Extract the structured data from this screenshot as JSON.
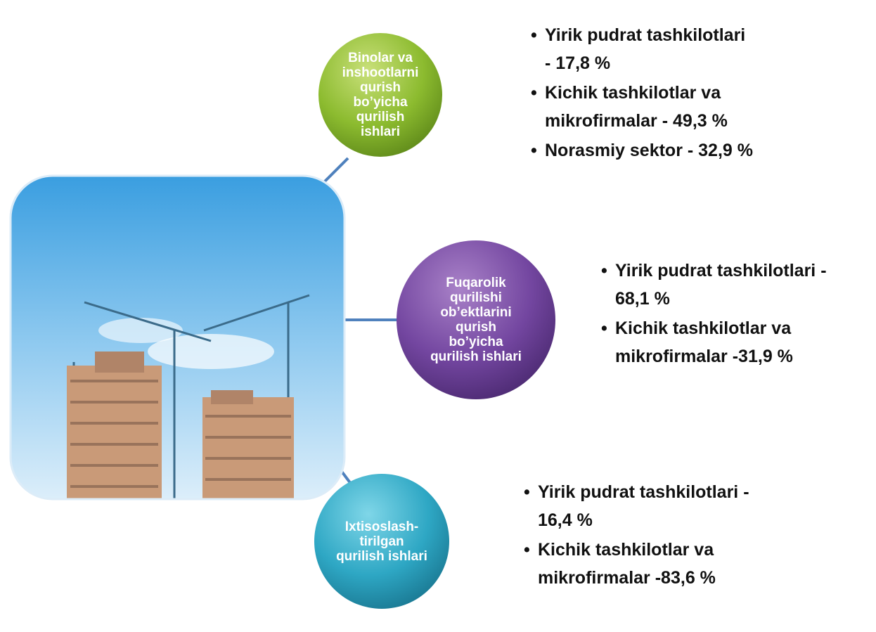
{
  "nodes": [
    {
      "label": [
        "Binolar va",
        "inshootlarni",
        "qurish",
        "bo’yicha",
        "qurilish",
        "ishlari"
      ],
      "items": [
        [
          "Yirik pudrat tashkilotlari",
          "- 17,8 %"
        ],
        [
          "Kichik tashkilotlar va",
          "mikrofirmalar - 49,3 %"
        ],
        [
          "Norasmiy sektor - 32,9 %"
        ]
      ]
    },
    {
      "label": [
        "Fuqarolik",
        "qurilishi",
        "ob’ektlarini",
        "qurish",
        "bo’yicha",
        "qurilish ishlari"
      ],
      "items": [
        [
          "Yirik pudrat tashkilotlari -",
          "68,1 %"
        ],
        [
          "Kichik tashkilotlar va",
          "mikrofirmalar -31,9 %"
        ]
      ]
    },
    {
      "label": [
        "Ixtisoslash-",
        "tirilgan",
        "qurilish ishlari"
      ],
      "items": [
        [
          "Yirik pudrat tashkilotlari -",
          "16,4 %"
        ],
        [
          "Kichik tashkilotlar va",
          "mikrofirmalar -83,6 %"
        ]
      ]
    }
  ]
}
